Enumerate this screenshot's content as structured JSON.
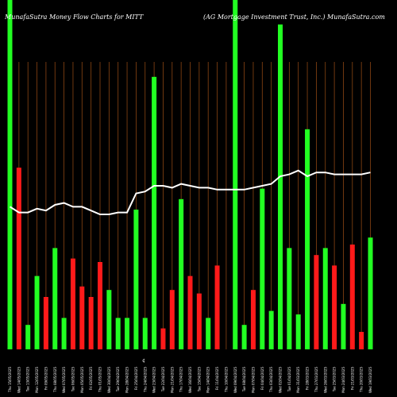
{
  "header": {
    "title_left": "MunafaSutra  Money Flow  Charts for MITT",
    "title_right": "(AG Mortgage     Investment Trust, Inc.) MunafaSutra.com"
  },
  "colors": {
    "background": "#000000",
    "gridline": "#8b4513",
    "up": "#22ff22",
    "down": "#ff1a1a",
    "line": "#ffffff"
  },
  "chart_data": {
    "type": "bar",
    "title": "MunafaSutra  Money Flow  Charts for MITT (AG Mortgage     Investment Trust, Inc.) MunafaSutra.com",
    "xlabel": "",
    "ylabel": "",
    "grid": true,
    "marker_label": "¢",
    "categories": [
      "Thu 15/05/2025",
      "Wed 14/05/2025",
      "Tue 13/05/2025",
      "Mon 12/05/2025",
      "Fri 09/05/2025",
      "Thu 08/05/2025",
      "Wed 07/05/2025",
      "Tue 06/05/2025",
      "Mon 05/05/2025",
      "Fri 02/05/2025",
      "Thu 01/05/2025",
      "Wed 30/04/2025",
      "Tue 29/04/2025",
      "Mon 28/04/2025",
      "Fri 25/04/2025",
      "Thu 24/04/2025",
      "Wed 23/04/2025",
      "Tue 22/04/2025",
      "Mon 21/04/2025",
      "Thu 17/04/2025",
      "Wed 16/04/2025",
      "Tue 15/04/2025",
      "Mon 14/04/2025",
      "Fri 11/04/2025",
      "Thu 10/04/2025",
      "Wed 09/04/2025",
      "Tue 08/04/2025",
      "Mon 07/04/2025",
      "Fri 04/04/2025",
      "Thu 03/04/2025",
      "Wed 02/04/2025",
      "Tue 01/04/2025",
      "Mon 31/03/2025",
      "Fri 28/03/2025",
      "Thu 27/03/2025",
      "Wed 26/03/2025",
      "Tue 25/03/2025",
      "Mon 24/03/2025",
      "Fri 21/03/2025",
      "Thu 20/03/2025",
      "Wed 19/03/2025"
    ],
    "bar_values": [
      1.0,
      0.52,
      0.07,
      0.21,
      0.15,
      0.29,
      0.09,
      0.26,
      0.18,
      0.15,
      0.25,
      0.17,
      0.09,
      0.09,
      0.4,
      0.09,
      0.78,
      0.06,
      0.17,
      0.43,
      0.21,
      0.16,
      0.09,
      0.24,
      0.0,
      1.0,
      0.07,
      0.17,
      0.46,
      0.11,
      0.93,
      0.29,
      0.1,
      0.63,
      0.27,
      0.29,
      0.24,
      0.13,
      0.3,
      0.05,
      0.32
    ],
    "bar_direction": [
      "up",
      "down",
      "up",
      "up",
      "down",
      "up",
      "up",
      "down",
      "down",
      "down",
      "down",
      "up",
      "up",
      "up",
      "up",
      "up",
      "up",
      "down",
      "down",
      "up",
      "down",
      "down",
      "up",
      "down",
      "up",
      "up",
      "up",
      "down",
      "up",
      "up",
      "up",
      "up",
      "up",
      "up",
      "down",
      "up",
      "down",
      "up",
      "down",
      "down",
      "up"
    ],
    "line_values": [
      0.54,
      0.51,
      0.51,
      0.53,
      0.52,
      0.55,
      0.56,
      0.54,
      0.54,
      0.52,
      0.5,
      0.5,
      0.51,
      0.51,
      0.61,
      0.62,
      0.65,
      0.65,
      0.64,
      0.66,
      0.65,
      0.64,
      0.64,
      0.63,
      0.63,
      0.63,
      0.63,
      0.64,
      0.65,
      0.66,
      0.7,
      0.71,
      0.73,
      0.7,
      0.72,
      0.72,
      0.71,
      0.71,
      0.71,
      0.71,
      0.72
    ],
    "ylim": [
      0,
      1
    ]
  }
}
